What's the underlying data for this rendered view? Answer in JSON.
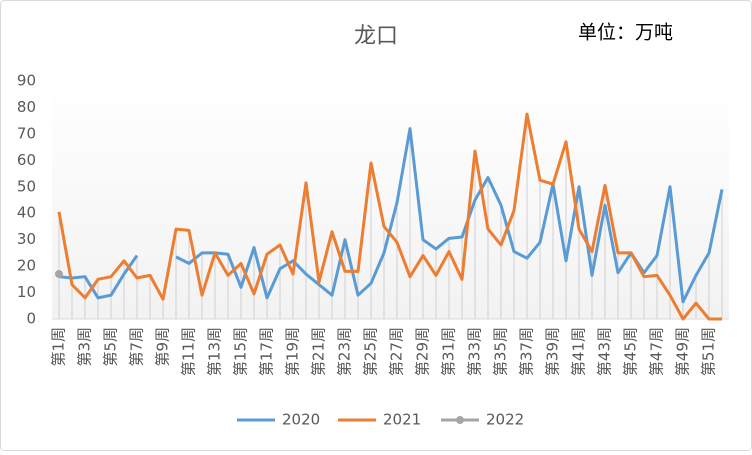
{
  "chart_data": {
    "type": "line",
    "title": "龙口",
    "annotation": "单位：万吨",
    "categories": [
      "第1周",
      null,
      "第3周",
      null,
      "第5周",
      null,
      "第7周",
      null,
      "第9周",
      null,
      "第11周",
      null,
      "第13周",
      null,
      "第15周",
      null,
      "第17周",
      null,
      "第19周",
      null,
      "第21周",
      null,
      "第23周",
      null,
      "第25周",
      null,
      "第27周",
      null,
      "第29周",
      null,
      "第31周",
      null,
      "第33周",
      null,
      "第35周",
      null,
      "第37周",
      null,
      "第39周",
      null,
      "第41周",
      null,
      "第43周",
      null,
      "第45周",
      null,
      "第47周",
      null,
      "第49周",
      null,
      "第51周",
      null
    ],
    "series": [
      {
        "name": "2020",
        "color": "#5b9bd5",
        "values": [
          16,
          15.5,
          16,
          8,
          9,
          17,
          24,
          null,
          null,
          23.5,
          21,
          25,
          25,
          24.5,
          12,
          27,
          8,
          19,
          22,
          17,
          13,
          9,
          30,
          9,
          13.5,
          25,
          44,
          72,
          30,
          26.5,
          30.5,
          31,
          45,
          53.5,
          43,
          25.5,
          23,
          29,
          51,
          22,
          50,
          16.5,
          43,
          17.5,
          25,
          17.5,
          24,
          50,
          6.5,
          16.5,
          25,
          49
        ]
      },
      {
        "name": "2021",
        "color": "#ed7d31",
        "values": [
          40.5,
          13,
          8,
          15,
          16,
          22,
          15.5,
          16.5,
          7.5,
          34,
          33.5,
          9,
          25,
          16.5,
          21,
          9.5,
          24.5,
          28,
          17,
          51.5,
          14,
          33,
          18,
          18,
          59,
          35,
          29,
          16,
          24,
          16.5,
          25.5,
          15,
          63.5,
          34,
          28,
          41,
          77.5,
          52.5,
          51,
          67,
          34,
          25.5,
          50.5,
          25,
          25,
          16,
          16.5,
          9,
          0,
          6,
          0,
          0
        ]
      },
      {
        "name": "2022",
        "color": "#a5a5a5",
        "marker": true,
        "values": [
          17,
          null,
          null,
          null,
          null,
          null,
          null,
          null,
          null,
          null,
          null,
          null,
          null,
          null,
          null,
          null,
          null,
          null,
          null,
          null,
          null,
          null,
          null,
          null,
          null,
          null,
          null,
          null,
          null,
          null,
          null,
          null,
          null,
          null,
          null,
          null,
          null,
          null,
          null,
          null,
          null,
          null,
          null,
          null,
          null,
          null,
          null,
          null,
          null,
          null,
          null,
          null
        ]
      }
    ],
    "ylim": [
      0,
      90
    ],
    "yticks": [
      0,
      10,
      20,
      30,
      40,
      50,
      60,
      70,
      80,
      90
    ],
    "drop_lines": true
  }
}
